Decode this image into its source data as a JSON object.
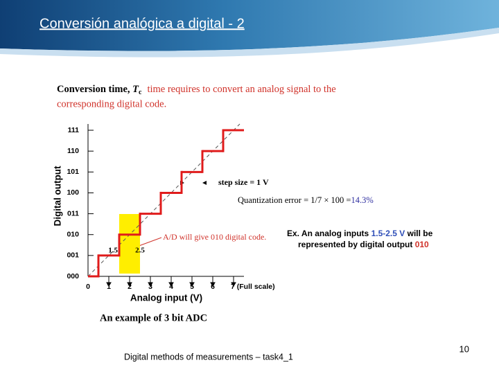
{
  "slide": {
    "title": "Conversión analógica a digital - 2",
    "footer": "Digital methods of measurements – task4_1",
    "page_number": "10"
  },
  "figure": {
    "heading": {
      "term": "Conversion time, ",
      "symbol": "T",
      "subscript": "c",
      "definition_1": "time requires to convert an analog signal to  the",
      "definition_2": "corresponding digital code."
    },
    "caption": "An example of 3 bit ADC",
    "notes": {
      "step_size": "step size = 1 V",
      "quantization_error": "Quantization error = 1/7 × 100 =",
      "quantization_value": "14.3%",
      "ad_code": "A/D will give 010 digital code.",
      "example": [
        "Ex. An analog inputs ",
        "1.5-2.5 V",
        " will be",
        "represented by digital output ",
        "010"
      ]
    }
  },
  "chart_data": {
    "type": "step",
    "x_label": "Analog input (V)",
    "y_label": "Digital output",
    "x": [
      0,
      0.5,
      1.5,
      2.5,
      3.5,
      4.5,
      5.5,
      6.5
    ],
    "values": [
      0,
      1,
      2,
      3,
      4,
      5,
      6,
      7
    ],
    "color": "#e01b1b",
    "xlim": [
      0,
      7.5
    ],
    "ylim": [
      0,
      7.3
    ],
    "xticks": [
      0,
      1,
      2,
      3,
      4,
      5,
      6,
      {
        "value": 7,
        "label": "7 (Full scale)"
      }
    ],
    "yticks": [
      {
        "value": 0,
        "label": "000"
      },
      {
        "value": 1,
        "label": "001"
      },
      {
        "value": 2,
        "label": "010"
      },
      {
        "value": 3,
        "label": "011"
      },
      {
        "value": 4,
        "label": "100"
      },
      {
        "value": 5,
        "label": "101"
      },
      {
        "value": 6,
        "label": "110"
      },
      {
        "value": 7,
        "label": "111"
      }
    ],
    "highlight": {
      "x": [
        1.5,
        2.5
      ],
      "color": "#ffee00"
    }
  }
}
